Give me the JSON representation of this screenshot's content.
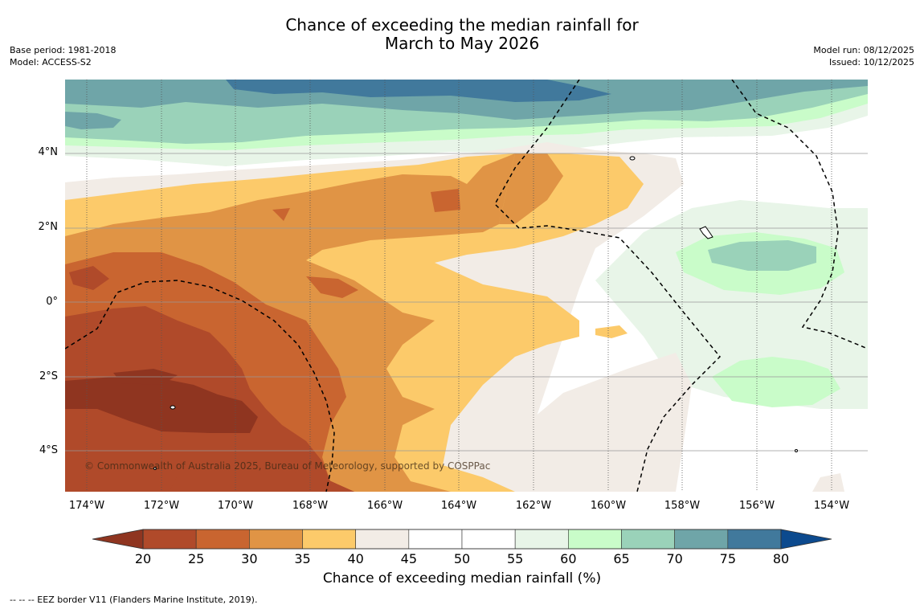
{
  "title": {
    "line1": "Chance of exceeding the median rainfall for",
    "line2": "March to May 2026"
  },
  "meta_left": {
    "base_period": "Base period: 1981-2018",
    "model": "Model: ACCESS-S2"
  },
  "meta_right": {
    "model_run": "Model run: 08/12/2025",
    "issued": "Issued: 10/12/2025"
  },
  "map": {
    "x_ticks": [
      "174°W",
      "172°W",
      "170°W",
      "168°W",
      "166°W",
      "164°W",
      "162°W",
      "160°W",
      "158°W",
      "156°W",
      "154°W"
    ],
    "y_ticks": [
      "4°N",
      "2°N",
      "0°",
      "2°S",
      "4°S"
    ],
    "copyright": "© Commonwealth of Australia 2025, Bureau of Meteorology, supported by COSPPac",
    "bands": [
      {
        "range": "<20",
        "color": "#8f3520"
      },
      {
        "range": "20-25",
        "color": "#b04a2a"
      },
      {
        "range": "25-30",
        "color": "#c96530"
      },
      {
        "range": "30-35",
        "color": "#e09445"
      },
      {
        "range": "35-40",
        "color": "#fcca6a"
      },
      {
        "range": "40-45",
        "color": "#f2ece6"
      },
      {
        "range": "45-55",
        "color": "#ffffff"
      },
      {
        "range": "55-60",
        "color": "#e8f5e8"
      },
      {
        "range": "60-65",
        "color": "#c9fcc9"
      },
      {
        "range": "65-70",
        "color": "#9ad2b9"
      },
      {
        "range": "70-75",
        "color": "#6fa5a8"
      },
      {
        "range": "75-80",
        "color": "#41799c"
      }
    ]
  },
  "colorbar": {
    "ticks": [
      "20",
      "25",
      "30",
      "35",
      "40",
      "45",
      "50",
      "55",
      "60",
      "65",
      "70",
      "75",
      "80"
    ],
    "colors": [
      "#b04a2a",
      "#c96530",
      "#e09445",
      "#fcca6a",
      "#f2ece6",
      "#ffffff",
      "#ffffff",
      "#e8f5e8",
      "#c9fcc9",
      "#9ad2b9",
      "#6fa5a8",
      "#41799c"
    ],
    "low_extend_color": "#8f3520",
    "high_extend_color": "#0c4a8e",
    "title": "Chance of exceeding median rainfall (%)"
  },
  "footnote": "--  --  -- EEZ border V11 (Flanders Marine Institute, 2019)."
}
